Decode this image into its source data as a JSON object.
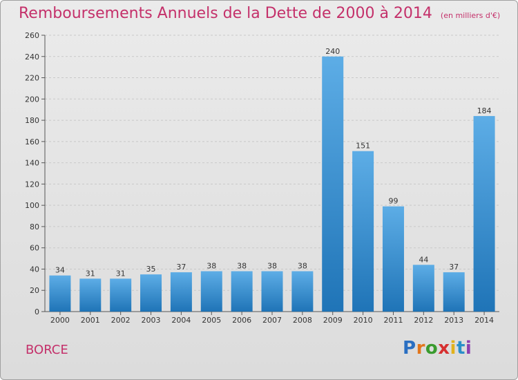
{
  "header": {
    "title": "Remboursements Annuels de la Dette de 2000 à 2014",
    "unit_note": "(en milliers d'€)"
  },
  "footer": {
    "commune": "BORCE",
    "logo_text": "Proxiti"
  },
  "chart_data": {
    "type": "bar",
    "title": "Remboursements Annuels de la Dette de 2000 à 2014",
    "subtitle": "(en milliers d'€)",
    "xlabel": "",
    "ylabel": "",
    "categories": [
      "2000",
      "2001",
      "2002",
      "2003",
      "2004",
      "2005",
      "2006",
      "2007",
      "2008",
      "2009",
      "2010",
      "2011",
      "2012",
      "2013",
      "2014"
    ],
    "values": [
      34,
      31,
      31,
      35,
      37,
      38,
      38,
      38,
      38,
      240,
      151,
      99,
      44,
      37,
      184
    ],
    "data_labels": [
      "34",
      "31",
      "31",
      "35",
      "37",
      "38",
      "38",
      "38",
      "38",
      "240",
      "151",
      "99",
      "44",
      "37",
      "184"
    ],
    "ylim": [
      0,
      260
    ],
    "yticks": [
      0,
      20,
      40,
      60,
      80,
      100,
      120,
      140,
      160,
      180,
      200,
      220,
      240,
      260
    ],
    "grid": true,
    "colors": {
      "bar_light": "#5dade6",
      "bar_dark": "#1f74b7",
      "grid": "#c8c8c8",
      "title": "#c4306a"
    }
  }
}
